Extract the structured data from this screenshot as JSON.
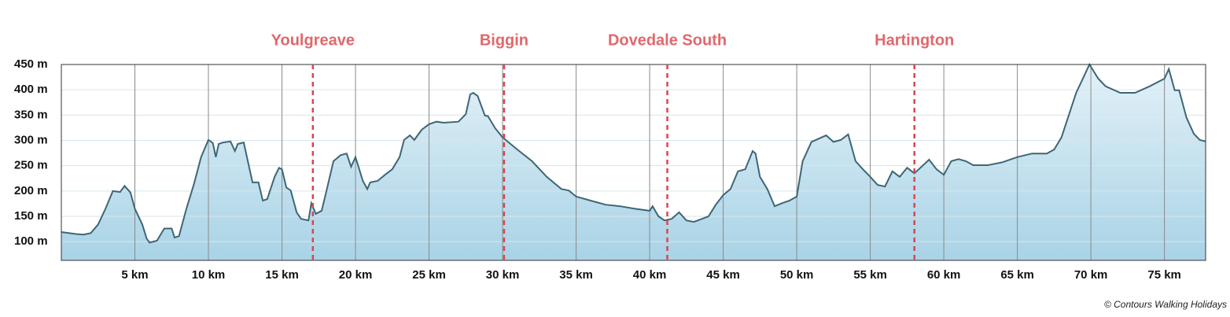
{
  "chart_data": {
    "type": "area",
    "color": "#3e6675",
    "fill_top": "#e3f1f8",
    "fill_bottom": "#a9d3e6",
    "marker_color": "#d9464d",
    "grid": true,
    "xlim": [
      0,
      77.8
    ],
    "ylim": [
      63,
      450
    ],
    "xticks": [
      {
        "value": 5,
        "label": "5 km"
      },
      {
        "value": 10,
        "label": "10 km"
      },
      {
        "value": 15,
        "label": "15 km"
      },
      {
        "value": 20,
        "label": "20 km"
      },
      {
        "value": 25,
        "label": "25 km"
      },
      {
        "value": 30,
        "label": "30 km"
      },
      {
        "value": 35,
        "label": "35 km"
      },
      {
        "value": 40,
        "label": "40 km"
      },
      {
        "value": 45,
        "label": "45 km"
      },
      {
        "value": 50,
        "label": "50 km"
      },
      {
        "value": 55,
        "label": "55 km"
      },
      {
        "value": 60,
        "label": "60 km"
      },
      {
        "value": 65,
        "label": "65 km"
      },
      {
        "value": 70,
        "label": "70 km"
      },
      {
        "value": 75,
        "label": "75 km"
      }
    ],
    "yticks": [
      {
        "value": 100,
        "label": "100 m"
      },
      {
        "value": 150,
        "label": "150 m"
      },
      {
        "value": 200,
        "label": "200 m"
      },
      {
        "value": 250,
        "label": "250 m"
      },
      {
        "value": 300,
        "label": "300 m"
      },
      {
        "value": 350,
        "label": "350 m"
      },
      {
        "value": 400,
        "label": "400 m"
      },
      {
        "value": 450,
        "label": "450 m"
      }
    ],
    "markers": [
      {
        "label": "Youlgreave",
        "x": 17.1
      },
      {
        "label": "Biggin",
        "x": 30.1
      },
      {
        "label": "Dovedale South",
        "x": 41.2
      },
      {
        "label": "Hartington",
        "x": 58.0
      }
    ],
    "x": [
      0,
      1,
      1.5,
      2,
      2.5,
      3,
      3.5,
      4,
      4.3,
      4.7,
      5,
      5.5,
      5.8,
      6,
      6.5,
      7,
      7.5,
      7.7,
      8,
      8.5,
      9,
      9.5,
      10,
      10.3,
      10.5,
      10.7,
      11,
      11.5,
      11.8,
      12,
      12.4,
      12.8,
      13,
      13.4,
      13.7,
      14,
      14.5,
      14.8,
      15,
      15.3,
      15.6,
      16,
      16.3,
      16.8,
      17,
      17.3,
      17.7,
      18,
      18.5,
      19,
      19.4,
      19.7,
      20,
      20.5,
      20.8,
      21,
      21.5,
      22,
      22.5,
      23,
      23.3,
      23.7,
      24,
      24.5,
      25,
      25.5,
      26,
      27,
      27.5,
      27.8,
      28,
      28.3,
      28.8,
      29,
      29.5,
      30,
      31,
      32,
      33,
      34,
      34.5,
      35,
      36,
      37,
      38,
      39,
      40,
      40.2,
      40.6,
      41,
      41.5,
      42,
      42.5,
      43,
      44,
      44.5,
      45,
      45.5,
      46,
      46.5,
      47,
      47.2,
      47.5,
      48,
      48.5,
      49,
      49.5,
      50,
      50.4,
      51,
      52,
      52.5,
      53,
      53.5,
      54,
      54.5,
      55,
      55.5,
      56,
      56.5,
      57,
      57.5,
      58,
      59,
      59.5,
      60,
      60.5,
      61,
      61.5,
      62,
      63,
      64,
      65,
      66,
      67,
      67.5,
      68,
      69,
      69.5,
      69.9,
      70.5,
      71,
      72,
      73,
      74,
      75,
      75.3,
      75.7,
      76,
      76.5,
      77,
      77.4,
      77.8
    ],
    "values": [
      119,
      115,
      114,
      117,
      134,
      165,
      200,
      198,
      210,
      197,
      165,
      134,
      106,
      98,
      102,
      126,
      126,
      108,
      111,
      165,
      212,
      267,
      301,
      295,
      267,
      293,
      296,
      298,
      279,
      293,
      296,
      243,
      217,
      217,
      181,
      184,
      228,
      246,
      243,
      207,
      201,
      158,
      145,
      142,
      176,
      155,
      161,
      197,
      259,
      271,
      274,
      248,
      267,
      220,
      204,
      217,
      220,
      232,
      243,
      267,
      301,
      310,
      301,
      321,
      332,
      337,
      335,
      337,
      352,
      391,
      394,
      388,
      349,
      348,
      324,
      306,
      282,
      259,
      228,
      204,
      201,
      189,
      181,
      173,
      170,
      165,
      161,
      170,
      150,
      142,
      145,
      158,
      142,
      139,
      150,
      173,
      192,
      204,
      239,
      243,
      279,
      274,
      228,
      204,
      170,
      176,
      181,
      189,
      259,
      297,
      310,
      297,
      301,
      312,
      259,
      243,
      228,
      212,
      209,
      239,
      228,
      246,
      235,
      262,
      243,
      232,
      259,
      263,
      259,
      251,
      251,
      257,
      267,
      274,
      274,
      282,
      306,
      394,
      425,
      450,
      422,
      407,
      394,
      394,
      407,
      422,
      441,
      399,
      399,
      345,
      313,
      301,
      298
    ]
  },
  "credit": "© Contours Walking Holidays"
}
